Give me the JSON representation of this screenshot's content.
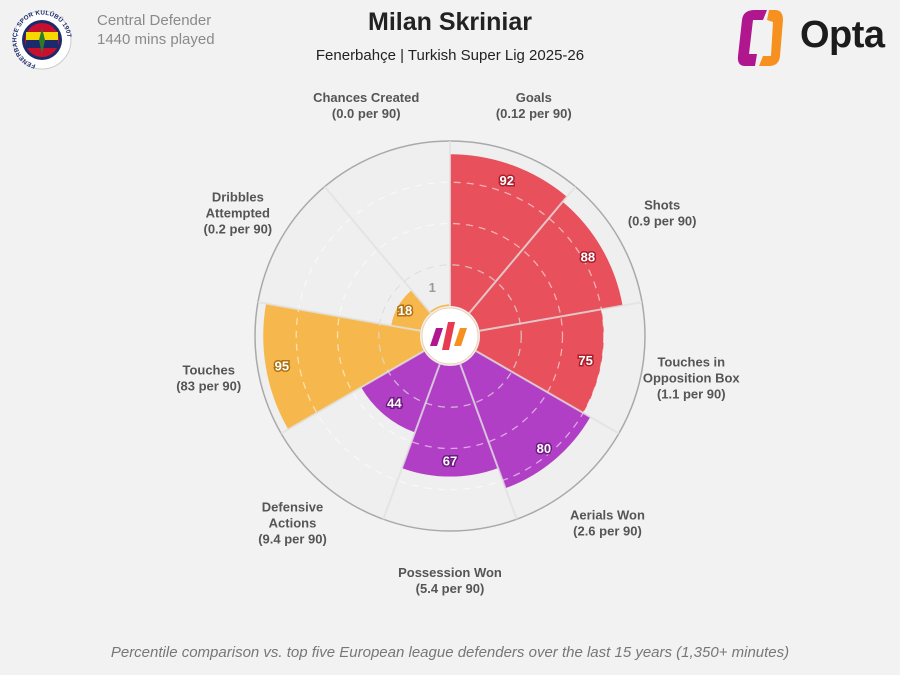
{
  "header": {
    "position": "Central Defender",
    "minutes": "1440 mins played",
    "player": "Milan Skriniar",
    "subtitle": "Fenerbahçe | Turkish Super Lig 2025-26",
    "club_crest_text": "FENERBAHÇE SPOR KULÜBÜ 1907",
    "brand": "Opta"
  },
  "footer": "Percentile comparison vs. top five European league defenders over the last 15 years (1,350+ minutes)",
  "colors": {
    "attacking": "#e8505b",
    "defending": "#b13fc6",
    "possession": "#f6b84c",
    "background": "#f2f2f2"
  },
  "chart_data": {
    "type": "polar-bar",
    "scale": [
      0,
      100
    ],
    "grid": true,
    "categories": [
      {
        "label": [
          "Goals",
          "(0.12 per 90)"
        ],
        "value": 92,
        "group": "attacking"
      },
      {
        "label": [
          "Shots",
          "(0.9 per 90)"
        ],
        "value": 88,
        "group": "attacking"
      },
      {
        "label": [
          "Touches in",
          "Opposition Box",
          "(1.1 per 90)"
        ],
        "value": 75,
        "group": "attacking"
      },
      {
        "label": [
          "Aerials Won",
          "(2.6 per 90)"
        ],
        "value": 80,
        "group": "defending"
      },
      {
        "label": [
          "Possession Won",
          "(5.4 per 90)"
        ],
        "value": 67,
        "group": "defending"
      },
      {
        "label": [
          "Defensive",
          "Actions",
          "(9.4 per 90)"
        ],
        "value": 44,
        "group": "defending"
      },
      {
        "label": [
          "Touches",
          "(83 per 90)"
        ],
        "value": 95,
        "group": "possession"
      },
      {
        "label": [
          "Dribbles",
          "Attempted",
          "(0.2 per 90)"
        ],
        "value": 18,
        "group": "possession"
      },
      {
        "label": [
          "Chances Created",
          "(0.0 per 90)"
        ],
        "value": 1,
        "group": "possession"
      }
    ]
  }
}
